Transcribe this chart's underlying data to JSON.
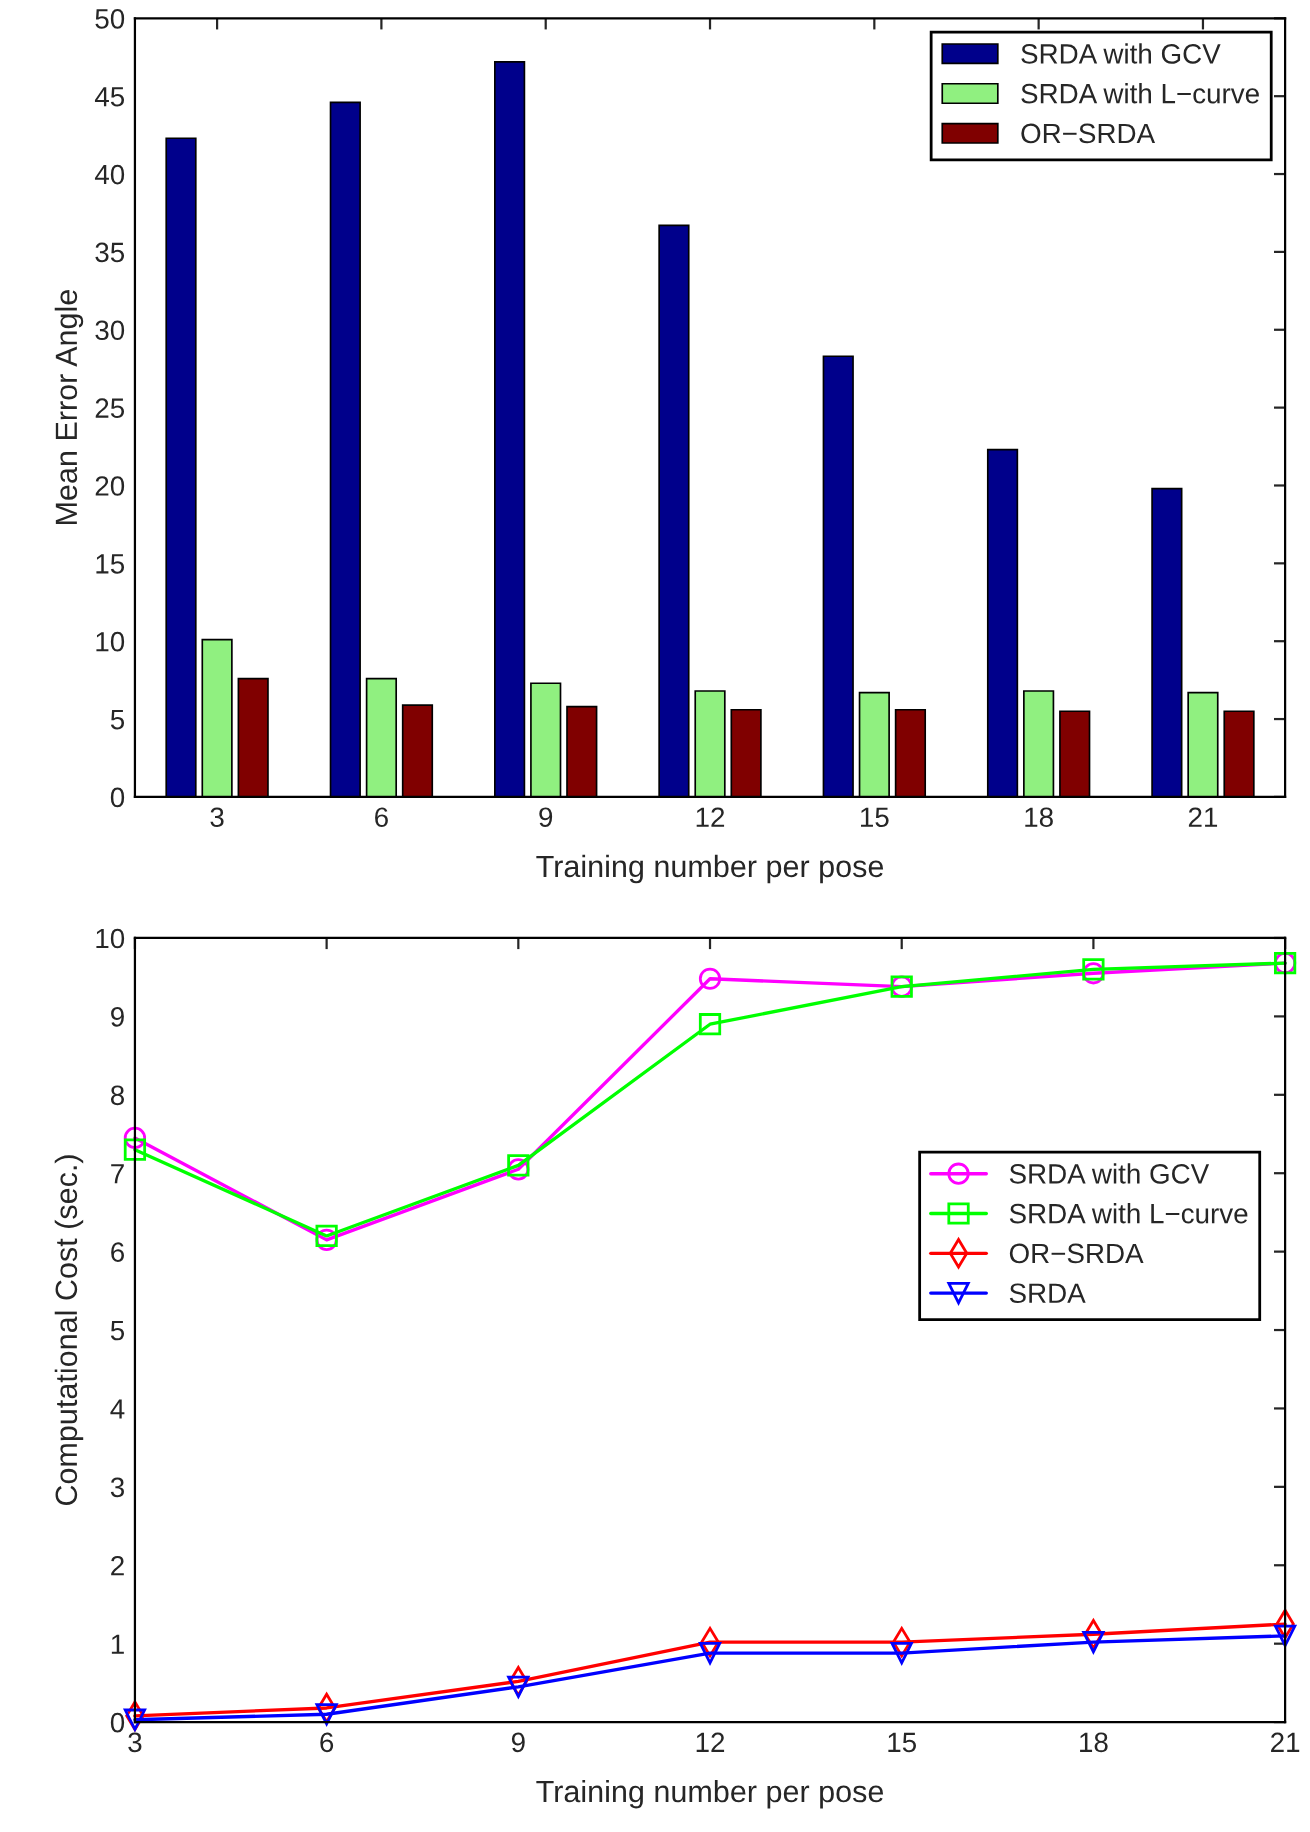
{
  "chart_data": [
    {
      "type": "bar",
      "xlabel": "Training number per pose",
      "ylabel": "Mean Error Angle",
      "categories": [
        "3",
        "6",
        "9",
        "12",
        "15",
        "18",
        "21"
      ],
      "series": [
        {
          "name": "SRDA with GCV",
          "color": "#00008b",
          "values": [
            42.3,
            44.6,
            47.2,
            36.7,
            28.3,
            22.3,
            19.8
          ]
        },
        {
          "name": "SRDA with L−curve",
          "color": "#90f080",
          "values": [
            10.1,
            7.6,
            7.3,
            6.8,
            6.7,
            6.8,
            6.7
          ]
        },
        {
          "name": "OR−SRDA",
          "color": "#800000",
          "values": [
            7.6,
            5.9,
            5.8,
            5.6,
            5.6,
            5.5,
            5.5
          ]
        }
      ],
      "ylim": [
        0,
        50
      ],
      "yticks": [
        0,
        5,
        10,
        15,
        20,
        25,
        30,
        35,
        40,
        45,
        50
      ],
      "legend": "top right",
      "grid": false
    },
    {
      "type": "line",
      "xlabel": "Training number per pose",
      "ylabel": "Computational Cost (sec.)",
      "x": [
        3,
        6,
        9,
        12,
        15,
        18,
        21
      ],
      "series": [
        {
          "name": "SRDA with GCV",
          "color": "#ff00ff",
          "marker": "circle",
          "values": [
            7.45,
            6.15,
            7.05,
            9.48,
            9.38,
            9.55,
            9.68
          ]
        },
        {
          "name": "SRDA with L−curve",
          "color": "#00ff00",
          "marker": "square",
          "values": [
            7.3,
            6.2,
            7.1,
            8.9,
            9.38,
            9.6,
            9.68
          ]
        },
        {
          "name": "OR−SRDA",
          "color": "#ff0000",
          "marker": "diamond",
          "values": [
            0.08,
            0.18,
            0.52,
            1.02,
            1.02,
            1.12,
            1.25
          ]
        },
        {
          "name": "SRDA",
          "color": "#0000ff",
          "marker": "triangle",
          "values": [
            0.03,
            0.1,
            0.45,
            0.88,
            0.88,
            1.02,
            1.1
          ]
        }
      ],
      "xlim": [
        3,
        21
      ],
      "xticks": [
        3,
        6,
        9,
        12,
        15,
        18,
        21
      ],
      "ylim": [
        0,
        10
      ],
      "yticks": [
        0,
        1,
        2,
        3,
        4,
        5,
        6,
        7,
        8,
        9,
        10
      ],
      "legend": "right",
      "grid": false,
      "line_style": "solid"
    }
  ]
}
